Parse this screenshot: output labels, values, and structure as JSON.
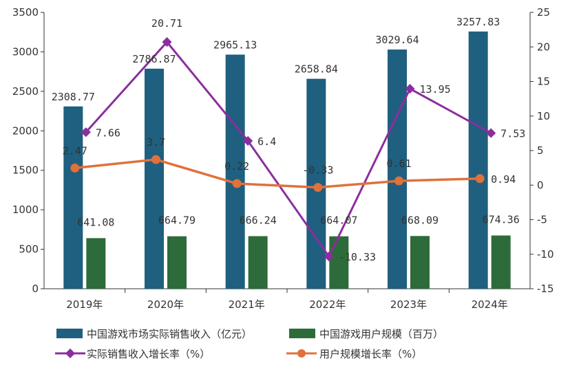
{
  "chart_data": {
    "type": "bar",
    "categories": [
      "2019年",
      "2020年",
      "2021年",
      "2022年",
      "2023年",
      "2024年"
    ],
    "y_left": {
      "min": 0,
      "max": 3500,
      "step": 500,
      "ticks": [
        "0",
        "500",
        "1000",
        "1500",
        "2000",
        "2500",
        "3000",
        "3500"
      ]
    },
    "y_right": {
      "min": -15,
      "max": 25,
      "step": 5,
      "ticks": [
        "-15",
        "-10",
        "-5",
        "0",
        "5",
        "10",
        "15",
        "20",
        "25"
      ]
    },
    "series": [
      {
        "name": "中国游戏市场实际销售收入（亿元）",
        "kind": "bar",
        "axis": "left",
        "color": "#1f5f7f",
        "values": [
          2308.77,
          2786.87,
          2965.13,
          2658.84,
          3029.64,
          3257.83
        ],
        "labels": [
          "2308.77",
          "2786.87",
          "2965.13",
          "2658.84",
          "3029.64",
          "3257.83"
        ]
      },
      {
        "name": "中国游戏用户规模（百万）",
        "kind": "bar",
        "axis": "left",
        "color": "#2e6b3a",
        "values": [
          641.08,
          664.79,
          666.24,
          664.07,
          668.09,
          674.36
        ],
        "labels": [
          "641.08",
          "664.79",
          "666.24",
          "664.07",
          "668.09",
          "674.36"
        ]
      },
      {
        "name": "实际销售收入增长率（%）",
        "kind": "line",
        "axis": "right",
        "color": "#8b2e9e",
        "marker": "diamond",
        "values": [
          7.66,
          20.71,
          6.4,
          -10.33,
          13.95,
          7.53
        ],
        "labels": [
          "7.66",
          "20.71",
          "6.4",
          "-10.33",
          "13.95",
          "7.53"
        ]
      },
      {
        "name": "用户规模增长率（%）",
        "kind": "line",
        "axis": "right",
        "color": "#e0713a",
        "marker": "circle",
        "values": [
          2.47,
          3.7,
          0.22,
          -0.33,
          0.61,
          0.94
        ],
        "labels": [
          "2.47",
          "3.7",
          "0.22",
          "-0.33",
          "0.61",
          "0.94"
        ]
      }
    ],
    "grid": false,
    "legend_position": "bottom"
  }
}
